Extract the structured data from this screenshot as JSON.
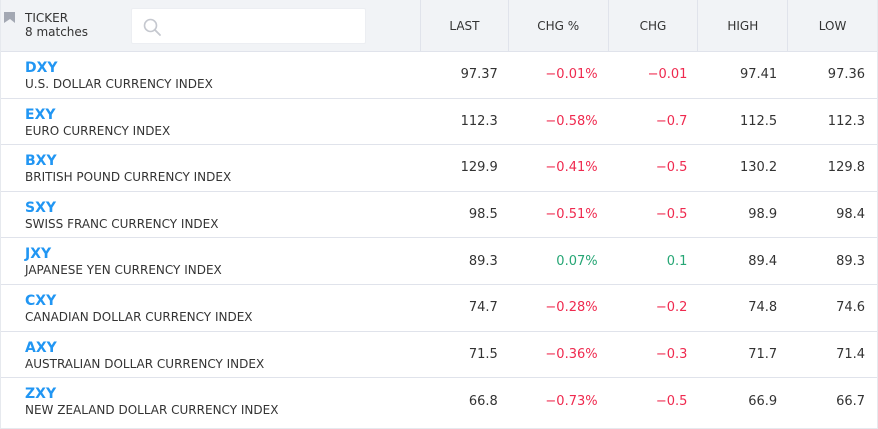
{
  "header": {
    "ticker_label": "TICKER",
    "matches": "8 matches",
    "search": {
      "value": "",
      "placeholder": ""
    },
    "columns": {
      "last": "LAST",
      "chg_pct": "CHG %",
      "chg": "CHG",
      "high": "HIGH",
      "low": "LOW"
    }
  },
  "colors": {
    "symbol": "#2196f3",
    "negative": "#ef2a4f",
    "positive": "#26a675"
  },
  "rows": [
    {
      "symbol": "DXY",
      "name": "U.S. DOLLAR CURRENCY INDEX",
      "last": "97.37",
      "chg_pct": "−0.01%",
      "chg": "−0.01",
      "high": "97.41",
      "low": "97.36",
      "dir": "neg"
    },
    {
      "symbol": "EXY",
      "name": "EURO CURRENCY INDEX",
      "last": "112.3",
      "chg_pct": "−0.58%",
      "chg": "−0.7",
      "high": "112.5",
      "low": "112.3",
      "dir": "neg"
    },
    {
      "symbol": "BXY",
      "name": "BRITISH POUND CURRENCY INDEX",
      "last": "129.9",
      "chg_pct": "−0.41%",
      "chg": "−0.5",
      "high": "130.2",
      "low": "129.8",
      "dir": "neg"
    },
    {
      "symbol": "SXY",
      "name": "SWISS FRANC CURRENCY INDEX",
      "last": "98.5",
      "chg_pct": "−0.51%",
      "chg": "−0.5",
      "high": "98.9",
      "low": "98.4",
      "dir": "neg"
    },
    {
      "symbol": "JXY",
      "name": "JAPANESE YEN CURRENCY INDEX",
      "last": "89.3",
      "chg_pct": "0.07%",
      "chg": "0.1",
      "high": "89.4",
      "low": "89.3",
      "dir": "pos"
    },
    {
      "symbol": "CXY",
      "name": "CANADIAN DOLLAR CURRENCY INDEX",
      "last": "74.7",
      "chg_pct": "−0.28%",
      "chg": "−0.2",
      "high": "74.8",
      "low": "74.6",
      "dir": "neg"
    },
    {
      "symbol": "AXY",
      "name": "AUSTRALIAN DOLLAR CURRENCY INDEX",
      "last": "71.5",
      "chg_pct": "−0.36%",
      "chg": "−0.3",
      "high": "71.7",
      "low": "71.4",
      "dir": "neg"
    },
    {
      "symbol": "ZXY",
      "name": "NEW ZEALAND DOLLAR CURRENCY INDEX",
      "last": "66.8",
      "chg_pct": "−0.73%",
      "chg": "−0.5",
      "high": "66.9",
      "low": "66.7",
      "dir": "neg"
    }
  ]
}
